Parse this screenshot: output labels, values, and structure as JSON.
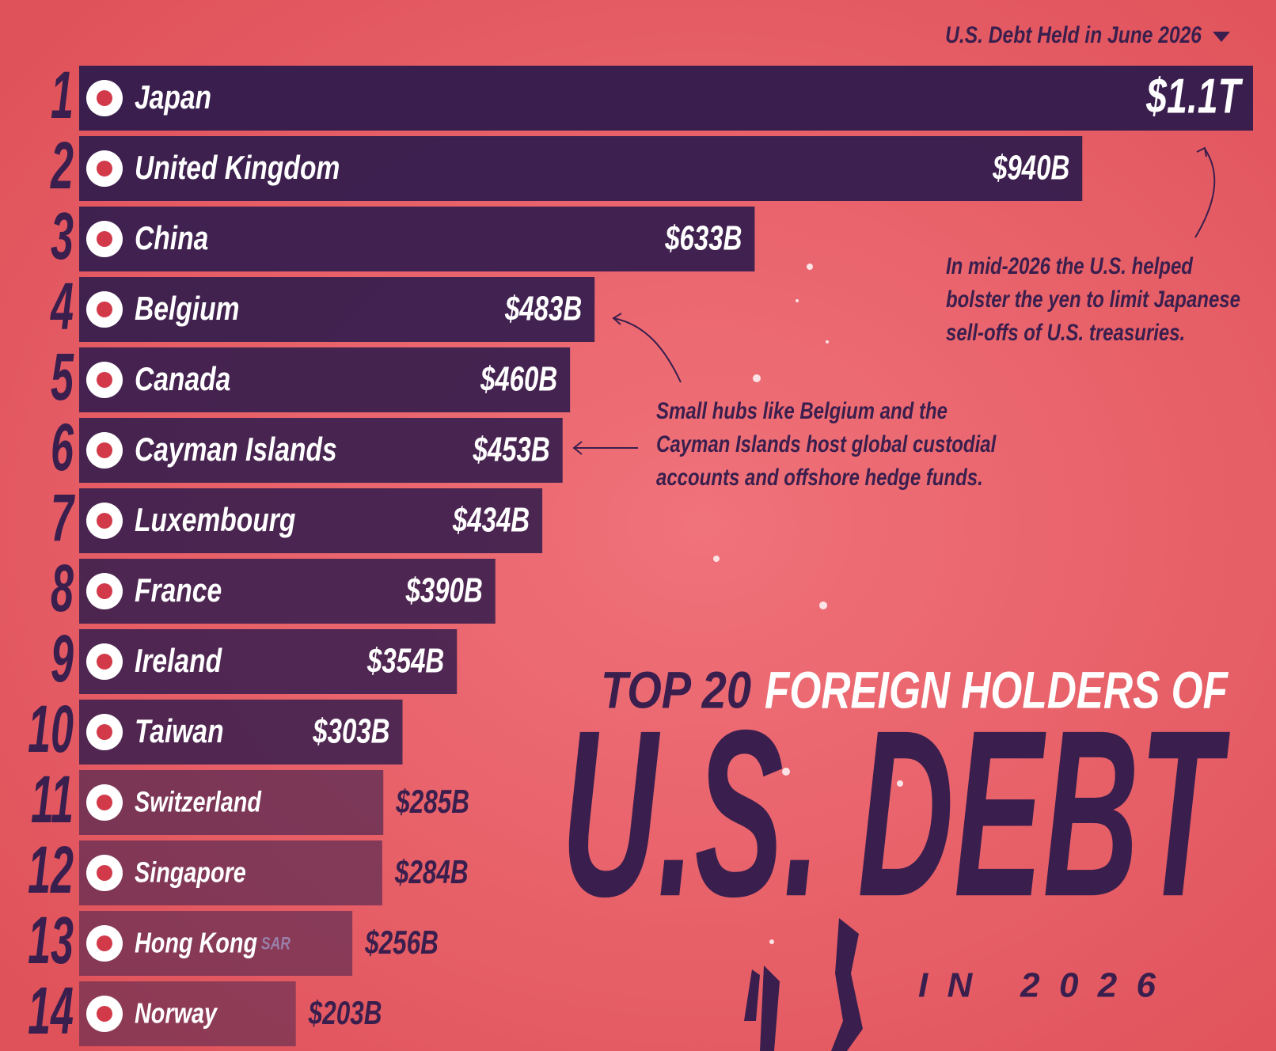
{
  "header": {
    "label": "U.S. Debt Held in June 2026"
  },
  "chart_data": {
    "type": "bar",
    "orientation": "horizontal",
    "title_parts": [
      "TOP 20",
      "FOREIGN HOLDERS OF"
    ],
    "title": "U.S. DEBT",
    "subtitle": "IN 2026",
    "ranks": [
      1,
      2,
      3,
      4,
      5,
      6,
      7,
      8,
      9,
      10,
      11,
      12,
      13,
      14
    ],
    "categories": [
      "Japan",
      "United Kingdom",
      "China",
      "Belgium",
      "Canada",
      "Cayman Islands",
      "Luxembourg",
      "France",
      "Ireland",
      "Taiwan",
      "Switzerland",
      "Singapore",
      "Hong Kong",
      "Norway"
    ],
    "category_suffixes": [
      null,
      null,
      null,
      null,
      null,
      null,
      null,
      null,
      null,
      null,
      null,
      null,
      "SAR",
      null
    ],
    "values": [
      1100,
      940,
      633,
      483,
      460,
      453,
      434,
      390,
      354,
      303,
      285,
      284,
      256,
      203
    ],
    "value_labels": [
      "$1.1T",
      "$940B",
      "$633B",
      "$483B",
      "$460B",
      "$453B",
      "$434B",
      "$390B",
      "$354B",
      "$303B",
      "$285B",
      "$284B",
      "$256B",
      "$203B"
    ],
    "color": "#3a1f4e",
    "annotations": [
      {
        "lines": [
          "In mid-2026 the U.S. helped",
          "bolster the yen to limit Japanese",
          "sell-offs of U.S. treasuries."
        ]
      },
      {
        "lines": [
          "Small hubs like Belgium and the",
          "Cayman Islands host global custodial",
          "accounts and offshore hedge funds."
        ]
      }
    ]
  }
}
